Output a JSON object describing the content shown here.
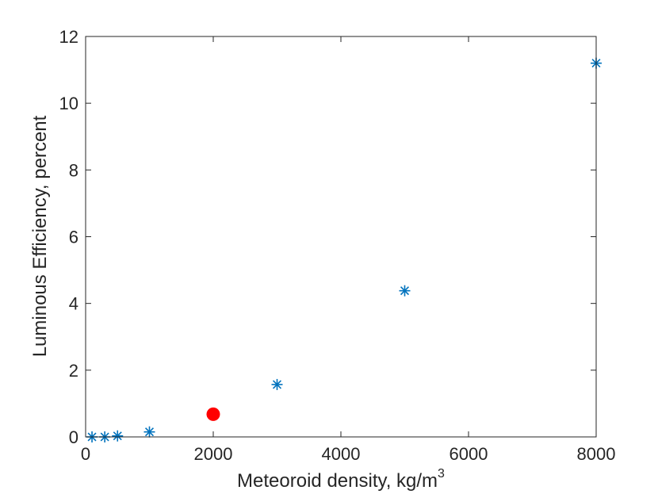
{
  "chart_data": {
    "type": "scatter",
    "xlabel": "Meteoroid density, kg/m",
    "xlabel_superscript": "3",
    "ylabel": "Luminous Efficiency, percent",
    "xlim": [
      0,
      8000
    ],
    "ylim": [
      0,
      12
    ],
    "xticks": [
      0,
      2000,
      4000,
      6000,
      8000
    ],
    "yticks": [
      0,
      2,
      4,
      6,
      8,
      10,
      12
    ],
    "grid": false,
    "series": [
      {
        "marker": "asterisk",
        "color": "#0072BD",
        "x": [
          100,
          300,
          500,
          1000,
          3000,
          5000,
          8000
        ],
        "y": [
          0.0,
          0.0,
          0.03,
          0.15,
          1.57,
          4.38,
          11.2
        ]
      },
      {
        "marker": "filled-circle",
        "color": "#FF0000",
        "x": [
          2000
        ],
        "y": [
          0.68
        ]
      }
    ]
  }
}
